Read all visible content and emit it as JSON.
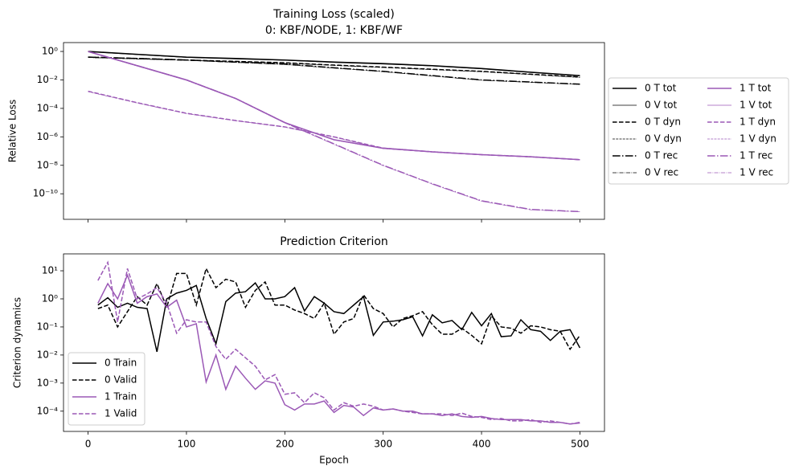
{
  "chart_data": [
    {
      "type": "line",
      "title": [
        "Training Loss (scaled)",
        "0: KBF/NODE, 1: KBF/WF"
      ],
      "ylabel": "Relative Loss",
      "log_y": true,
      "xlim": [
        -25,
        525
      ],
      "xticks": [
        0,
        100,
        200,
        300,
        400,
        500
      ],
      "xtick_labels": false,
      "ylim": [
        1.6e-12,
        4.2
      ],
      "yticks": [
        {
          "value": 1,
          "label": "10⁰"
        },
        {
          "value": 0.01,
          "label": "10⁻²"
        },
        {
          "value": 0.0001,
          "label": "10⁻⁴"
        },
        {
          "value": 1e-06,
          "label": "10⁻⁶"
        },
        {
          "value": 1e-08,
          "label": "10⁻⁸"
        },
        {
          "value": 1e-10,
          "label": "10⁻¹⁰"
        }
      ],
      "legend": {
        "loc": "outside right",
        "ncol": 2
      },
      "x": [
        0,
        50,
        100,
        150,
        200,
        250,
        300,
        350,
        400,
        450,
        500
      ],
      "series": [
        {
          "name": "0 T tot",
          "color": "#000000",
          "linestyle": "solid",
          "linewidth": 1.5,
          "values": [
            1,
            0.63,
            0.4,
            0.32,
            0.25,
            0.18,
            0.14,
            0.1,
            0.063,
            0.035,
            0.02
          ]
        },
        {
          "name": "0 V tot",
          "color": "#000000",
          "linestyle": "solid",
          "linewidth": 0.8,
          "values": [
            0.95,
            0.6,
            0.38,
            0.3,
            0.24,
            0.17,
            0.13,
            0.095,
            0.06,
            0.033,
            0.019
          ]
        },
        {
          "name": "0 T dyn",
          "color": "#000000",
          "linestyle": "dashed",
          "linewidth": 1.5,
          "values": [
            0.4,
            0.32,
            0.25,
            0.2,
            0.16,
            0.11,
            0.079,
            0.056,
            0.04,
            0.025,
            0.016
          ]
        },
        {
          "name": "0 V dyn",
          "color": "#000000",
          "linestyle": "dashed",
          "linewidth": 0.8,
          "values": [
            0.38,
            0.3,
            0.24,
            0.19,
            0.15,
            0.105,
            0.075,
            0.053,
            0.038,
            0.024,
            0.015
          ]
        },
        {
          "name": "0 T rec",
          "color": "#000000",
          "linestyle": "dashdot",
          "linewidth": 1.5,
          "values": [
            0.4,
            0.32,
            0.25,
            0.18,
            0.13,
            0.071,
            0.04,
            0.02,
            0.01,
            0.0071,
            0.005
          ]
        },
        {
          "name": "0 V rec",
          "color": "#000000",
          "linestyle": "dashdot",
          "linewidth": 0.8,
          "values": [
            0.38,
            0.3,
            0.24,
            0.17,
            0.12,
            0.068,
            0.038,
            0.019,
            0.0095,
            0.0068,
            0.0048
          ]
        },
        {
          "name": "1 T tot",
          "color": "#9b59b6",
          "linestyle": "solid",
          "linewidth": 1.5,
          "values": [
            1,
            0.1,
            0.01,
            0.0005,
            1e-05,
            6.3e-07,
            1.6e-07,
            8.9e-08,
            5.6e-08,
            4e-08,
            2.5e-08
          ]
        },
        {
          "name": "1 V tot",
          "color": "#9b59b6",
          "linestyle": "solid",
          "linewidth": 0.8,
          "values": [
            0.95,
            0.095,
            0.0095,
            0.00048,
            9.5e-06,
            6e-07,
            1.5e-07,
            8.5e-08,
            5.4e-08,
            3.8e-08,
            2.4e-08
          ]
        },
        {
          "name": "1 T dyn",
          "color": "#9b59b6",
          "linestyle": "dashed",
          "linewidth": 1.5,
          "values": [
            0.0016,
            0.00025,
            4.5e-05,
            1.4e-05,
            5e-06,
            1e-06,
            1.6e-07,
            8.9e-08,
            5.6e-08,
            4e-08,
            2.5e-08
          ]
        },
        {
          "name": "1 V dyn",
          "color": "#9b59b6",
          "linestyle": "dashed",
          "linewidth": 0.8,
          "values": [
            0.0015,
            0.00024,
            4.3e-05,
            1.35e-05,
            4.8e-06,
            9.5e-07,
            1.5e-07,
            8.5e-08,
            5.4e-08,
            3.8e-08,
            2.4e-08
          ]
        },
        {
          "name": "1 T rec",
          "color": "#9b59b6",
          "linestyle": "dashdot",
          "linewidth": 1.5,
          "values": [
            1,
            0.1,
            0.01,
            0.0005,
            1e-05,
            3.2e-07,
            1e-08,
            5e-10,
            3.2e-11,
            7.9e-12,
            5.6e-12
          ]
        },
        {
          "name": "1 V rec",
          "color": "#9b59b6",
          "linestyle": "dashdot",
          "linewidth": 0.8,
          "values": [
            0.95,
            0.095,
            0.0095,
            0.00048,
            9.5e-06,
            3e-07,
            9.5e-09,
            4.8e-10,
            3e-11,
            7.5e-12,
            5.4e-12
          ]
        }
      ]
    },
    {
      "type": "line",
      "title": [
        "Prediction Criterion"
      ],
      "ylabel": "Criterion dynamics",
      "xlabel": "Epoch",
      "log_y": true,
      "xlim": [
        -25,
        525
      ],
      "xticks": [
        0,
        100,
        200,
        300,
        400,
        500
      ],
      "xtick_labels": true,
      "ylim": [
        1.9e-05,
        40
      ],
      "yticks": [
        {
          "value": 10,
          "label": "10¹"
        },
        {
          "value": 1,
          "label": "10⁰"
        },
        {
          "value": 0.1,
          "label": "10⁻¹"
        },
        {
          "value": 0.01,
          "label": "10⁻²"
        },
        {
          "value": 0.001,
          "label": "10⁻³"
        },
        {
          "value": 0.0001,
          "label": "10⁻⁴"
        }
      ],
      "legend": {
        "loc": "lower left",
        "ncol": 1
      },
      "x": [
        10,
        20,
        30,
        40,
        50,
        60,
        70,
        80,
        90,
        100,
        110,
        120,
        130,
        140,
        150,
        160,
        170,
        180,
        190,
        200,
        210,
        220,
        230,
        240,
        250,
        260,
        270,
        280,
        290,
        300,
        310,
        320,
        330,
        340,
        350,
        360,
        370,
        380,
        390,
        400,
        410,
        420,
        430,
        440,
        450,
        460,
        470,
        480,
        490,
        500
      ],
      "series": [
        {
          "name": "0 Train",
          "color": "#000000",
          "linestyle": "solid",
          "linewidth": 1.5,
          "values": [
            0.6,
            1.1,
            0.5,
            0.7,
            0.5,
            0.45,
            0.013,
            1.0,
            1.6,
            2.0,
            3.0,
            0.2,
            0.025,
            0.8,
            1.6,
            1.8,
            3.7,
            1.0,
            1.0,
            1.2,
            2.5,
            0.37,
            1.2,
            0.7,
            0.35,
            0.3,
            0.6,
            1.2,
            0.05,
            0.15,
            0.16,
            0.18,
            0.23,
            0.048,
            0.27,
            0.14,
            0.17,
            0.08,
            0.33,
            0.11,
            0.3,
            0.045,
            0.048,
            0.18,
            0.08,
            0.07,
            0.033,
            0.07,
            0.08,
            0.018
          ]
        },
        {
          "name": "0 Valid",
          "color": "#000000",
          "linestyle": "dashed",
          "linewidth": 1.5,
          "values": [
            0.45,
            0.6,
            0.1,
            0.35,
            1.2,
            0.6,
            3.5,
            0.5,
            8,
            8,
            0.6,
            12,
            2.5,
            5,
            4,
            0.5,
            2,
            4,
            0.6,
            0.6,
            0.4,
            0.3,
            0.2,
            0.7,
            0.055,
            0.15,
            0.2,
            1.4,
            0.45,
            0.3,
            0.1,
            0.2,
            0.25,
            0.35,
            0.12,
            0.055,
            0.055,
            0.09,
            0.05,
            0.025,
            0.25,
            0.1,
            0.09,
            0.06,
            0.11,
            0.1,
            0.08,
            0.07,
            0.016,
            0.05
          ]
        },
        {
          "name": "1 Train",
          "color": "#9b59b6",
          "linestyle": "solid",
          "linewidth": 1.5,
          "values": [
            0.7,
            3.5,
            1.0,
            7,
            0.7,
            1.2,
            1.5,
            0.5,
            0.9,
            0.1,
            0.13,
            0.0011,
            0.01,
            0.0006,
            0.004,
            0.0015,
            0.0006,
            0.0012,
            0.001,
            0.00017,
            0.00011,
            0.00018,
            0.00018,
            0.00023,
            9e-05,
            0.00016,
            0.00014,
            7e-05,
            0.00013,
            0.00011,
            0.00012,
            0.0001,
            0.0001,
            8e-05,
            8e-05,
            7e-05,
            8e-05,
            6.5e-05,
            6e-05,
            6.5e-05,
            5.5e-05,
            5e-05,
            5e-05,
            5e-05,
            4.5e-05,
            4.5e-05,
            4e-05,
            4e-05,
            3.5e-05,
            3.8e-05
          ]
        },
        {
          "name": "1 Valid",
          "color": "#9b59b6",
          "linestyle": "dashed",
          "linewidth": 1.5,
          "values": [
            4.5,
            20,
            0.15,
            12,
            1.0,
            1.5,
            2.5,
            0.7,
            0.06,
            0.18,
            0.15,
            0.15,
            0.02,
            0.007,
            0.016,
            0.008,
            0.004,
            0.0013,
            0.002,
            0.0004,
            0.00045,
            0.0002,
            0.00045,
            0.0003,
            0.00011,
            0.0002,
            0.00015,
            0.00018,
            0.00015,
            0.00011,
            0.00012,
            0.0001,
            9e-05,
            8e-05,
            8e-05,
            8e-05,
            7e-05,
            8.5e-05,
            6.5e-05,
            6e-05,
            5e-05,
            5.5e-05,
            4.5e-05,
            4.5e-05,
            5e-05,
            4e-05,
            4.5e-05,
            4e-05,
            3.5e-05,
            4e-05
          ]
        }
      ]
    }
  ]
}
